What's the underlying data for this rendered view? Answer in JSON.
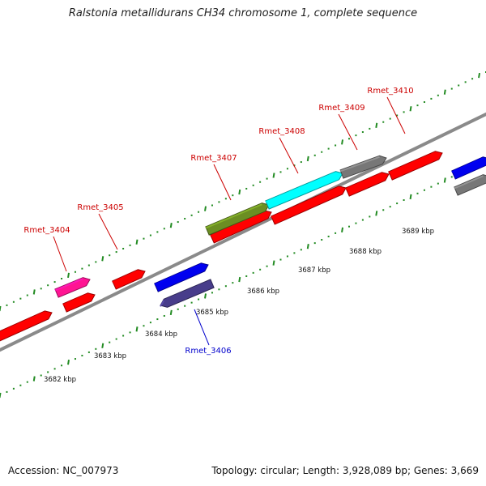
{
  "title": "Ralstonia metallidurans CH34 chromosome 1, complete sequence",
  "footer": {
    "accession": "Accession: NC_007973",
    "topology": "Topology: circular; Length: 3,928,089 bp; Genes: 3,669"
  },
  "colors": {
    "red": "#ff0000",
    "pink": "#ff1493",
    "blue": "#0000ee",
    "slate": "#483d8b",
    "olive": "#6b8e23",
    "cyan": "#00ffff",
    "gray": "#777777",
    "tick_green": "#228b22",
    "label_red": "#cc0000",
    "label_blue": "#0000cc",
    "backbone": "#999999"
  },
  "scale_labels": [
    "3682 kbp",
    "3683 kbp",
    "3684 kbp",
    "3685 kbp",
    "3686 kbp",
    "3687 kbp",
    "3688 kbp",
    "3689 kbp"
  ],
  "genes": [
    {
      "name": "Rmet_3404",
      "color": "pink",
      "strand": "+"
    },
    {
      "name": "Rmet_3405",
      "color": "red",
      "strand": "+"
    },
    {
      "name": "Rmet_3406",
      "color": "slate",
      "strand": "-"
    },
    {
      "name": "Rmet_3407",
      "color": "olive",
      "strand": "+"
    },
    {
      "name": "Rmet_3408",
      "color": "cyan",
      "strand": "+"
    },
    {
      "name": "Rmet_3409",
      "color": "gray",
      "strand": "+"
    },
    {
      "name": "Rmet_3410",
      "color": "red",
      "strand": "+"
    }
  ]
}
